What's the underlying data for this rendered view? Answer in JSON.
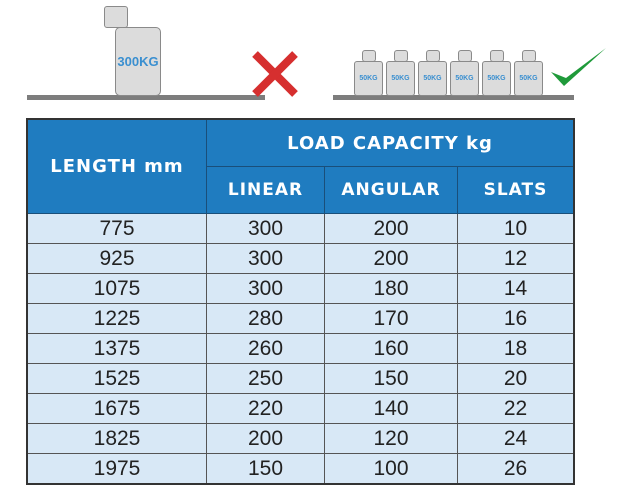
{
  "illustration": {
    "big_weight_label": "300KG",
    "small_weight_labels": [
      "50KG",
      "50KG",
      "50KG",
      "50KG",
      "50KG",
      "50KG"
    ],
    "wrong_icon": "red-x-icon",
    "right_icon": "green-check-icon",
    "colors": {
      "x": "#d62f2f",
      "check": "#1f9a3a",
      "header": "#1f7cc0",
      "cell": "#d8e8f6"
    }
  },
  "table": {
    "length_header": "LENGTH mm",
    "capacity_header": "LOAD CAPACITY kg",
    "sub_headers": [
      "LINEAR",
      "ANGULAR",
      "SLATS"
    ],
    "rows": [
      [
        "775",
        "300",
        "200",
        "10"
      ],
      [
        "925",
        "300",
        "200",
        "12"
      ],
      [
        "1075",
        "300",
        "180",
        "14"
      ],
      [
        "1225",
        "280",
        "170",
        "16"
      ],
      [
        "1375",
        "260",
        "160",
        "18"
      ],
      [
        "1525",
        "250",
        "150",
        "20"
      ],
      [
        "1675",
        "220",
        "140",
        "22"
      ],
      [
        "1825",
        "200",
        "120",
        "24"
      ],
      [
        "1975",
        "150",
        "100",
        "26"
      ]
    ]
  }
}
